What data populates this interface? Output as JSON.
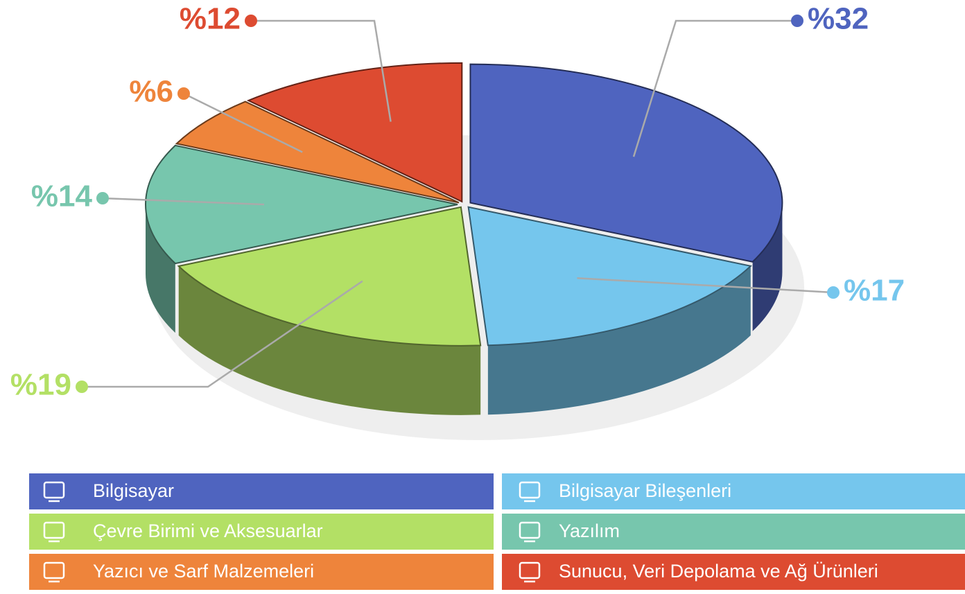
{
  "chart_data": {
    "type": "pie",
    "categories": [
      "Bilgisayar",
      "Bilgisayar Bileşenleri",
      "Çevre Birimi ve Aksesuarlar",
      "Yazılım",
      "Yazıcı ve Sarf Malzemeleri",
      "Sunucu, Veri Depolama ve Ağ Ürünleri"
    ],
    "values": [
      32,
      17,
      19,
      14,
      6,
      12
    ],
    "value_labels": [
      "%32",
      "%17",
      "%19",
      "%14",
      "%6",
      "%12"
    ],
    "colors": [
      "#4f64bf",
      "#75c6ed",
      "#b3e065",
      "#77c6ad",
      "#ee843b",
      "#dd4b31"
    ]
  }
}
